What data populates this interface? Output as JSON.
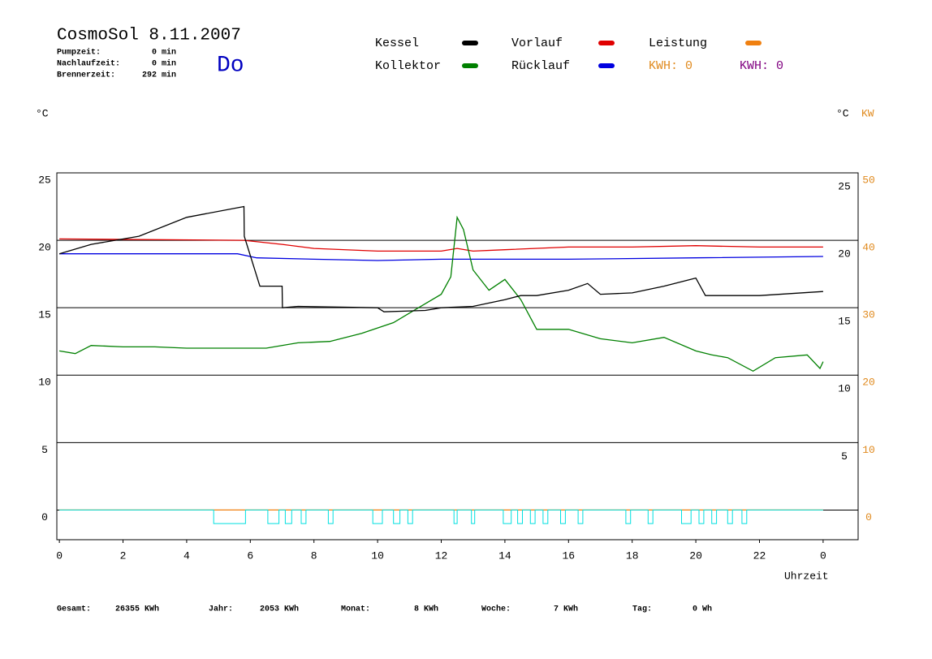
{
  "chart_data": {
    "type": "line",
    "title": "CosmoSol 8.11.2007",
    "day": "Do",
    "stats": [
      {
        "label": "Pumpzeit:",
        "value": "0 min"
      },
      {
        "label": "Nachlaufzeit:",
        "value": "0 min"
      },
      {
        "label": "Brennerzeit:",
        "value": "292 min"
      }
    ],
    "kwh": [
      {
        "label": "KWH:",
        "value": 0,
        "color": "#e08a1e"
      },
      {
        "label": "KWH:",
        "value": 0,
        "color": "#800080"
      }
    ],
    "ylabel": "°C",
    "y2label_left": "°C",
    "y2label": "KW",
    "xlabel": "Uhrzeit",
    "xlim": [
      -0.08,
      25.1
    ],
    "xticks": [
      0,
      2,
      4,
      6,
      8,
      10,
      12,
      14,
      16,
      18,
      20,
      22,
      {
        "value": 24,
        "label": "0"
      }
    ],
    "ylim": [
      -2.2,
      25
    ],
    "yticks": [
      0,
      5,
      10,
      15,
      20,
      25
    ],
    "y2lim": [
      -4.4,
      50
    ],
    "y2ticks": [
      0,
      10,
      20,
      30,
      40,
      50
    ],
    "grid": true,
    "series": [
      {
        "name": "Kessel",
        "color": "#000000",
        "x": [
          0,
          1,
          2.5,
          4,
          5.8,
          5.81,
          6.3,
          7.0,
          7.01,
          7.5,
          10,
          10.2,
          11.5,
          12,
          13,
          14,
          14.5,
          15,
          16,
          16.6,
          17,
          18,
          19,
          20,
          20.3,
          22,
          24
        ],
        "values": [
          19.0,
          19.7,
          20.3,
          21.7,
          22.5,
          20.3,
          16.6,
          16.6,
          15.0,
          15.1,
          15.0,
          14.7,
          14.8,
          15.0,
          15.1,
          15.6,
          15.9,
          15.9,
          16.3,
          16.8,
          16.0,
          16.1,
          16.6,
          17.2,
          15.9,
          15.9,
          16.2
        ]
      },
      {
        "name": "Kollektor",
        "color": "#008000",
        "x": [
          0,
          0.5,
          1,
          2,
          3,
          4,
          5,
          5.8,
          6.5,
          7.5,
          8.5,
          9.5,
          10.5,
          11,
          11.5,
          12,
          12.3,
          12.5,
          12.7,
          13,
          13.5,
          14,
          14.5,
          15,
          16,
          17,
          18,
          19,
          20,
          20.5,
          21,
          21.8,
          22.5,
          23.5,
          23.9,
          24
        ],
        "values": [
          11.8,
          11.6,
          12.2,
          12.1,
          12.1,
          12.0,
          12.0,
          12.0,
          12.0,
          12.4,
          12.5,
          13.1,
          13.9,
          14.6,
          15.3,
          16.0,
          17.3,
          21.7,
          20.8,
          17.8,
          16.3,
          17.1,
          15.6,
          13.4,
          13.4,
          12.7,
          12.4,
          12.8,
          11.8,
          11.5,
          11.3,
          10.3,
          11.3,
          11.5,
          10.5,
          11.0
        ]
      },
      {
        "name": "Vorlauf",
        "color": "#e00000",
        "x": [
          0,
          5.8,
          7,
          8,
          10,
          12,
          12.5,
          13,
          14,
          16,
          18,
          20,
          22,
          24
        ],
        "values": [
          20.1,
          20.0,
          19.7,
          19.4,
          19.2,
          19.2,
          19.4,
          19.2,
          19.3,
          19.5,
          19.5,
          19.6,
          19.5,
          19.5
        ]
      },
      {
        "name": "Rücklauf",
        "color": "#0000e0",
        "x": [
          0,
          5.6,
          6.2,
          8,
          10,
          12,
          14,
          16,
          20,
          24
        ],
        "values": [
          19.0,
          19.0,
          18.7,
          18.6,
          18.5,
          18.6,
          18.6,
          18.6,
          18.7,
          18.8
        ]
      },
      {
        "name": "Leistung",
        "color": "#f08010",
        "axis": "y2",
        "x": [
          0,
          24
        ],
        "values": [
          0,
          0
        ]
      },
      {
        "color": "#00e0e0",
        "x": [
          0,
          4.85,
          4.85,
          5.85,
          5.85,
          6.55,
          6.55,
          6.9,
          6.9,
          7.1,
          7.1,
          7.3,
          7.3,
          7.6,
          7.6,
          7.75,
          7.75,
          8.45,
          8.45,
          8.6,
          8.6,
          9.85,
          9.85,
          10.15,
          10.15,
          10.5,
          10.5,
          10.7,
          10.7,
          10.95,
          10.95,
          11.1,
          11.1,
          12.4,
          12.4,
          12.5,
          12.5,
          12.95,
          12.95,
          13.05,
          13.05,
          13.95,
          13.95,
          14.2,
          14.2,
          14.4,
          14.4,
          14.55,
          14.55,
          14.8,
          14.8,
          14.95,
          14.95,
          15.2,
          15.2,
          15.35,
          15.35,
          15.75,
          15.75,
          15.9,
          15.9,
          16.3,
          16.3,
          16.45,
          16.45,
          17.8,
          17.8,
          17.95,
          17.95,
          18.5,
          18.5,
          18.65,
          18.65,
          19.55,
          19.55,
          19.85,
          19.85,
          20.1,
          20.1,
          20.25,
          20.25,
          20.5,
          20.5,
          20.65,
          20.65,
          21.0,
          21.0,
          21.15,
          21.15,
          21.45,
          21.45,
          21.6,
          21.6,
          24
        ],
        "values": [
          0,
          0,
          -1,
          -1,
          0,
          0,
          -1,
          -1,
          0,
          0,
          -1,
          -1,
          0,
          0,
          -1,
          -1,
          0,
          0,
          -1,
          -1,
          0,
          0,
          -1,
          -1,
          0,
          0,
          -1,
          -1,
          0,
          0,
          -1,
          -1,
          0,
          0,
          -1,
          -1,
          0,
          0,
          -1,
          -1,
          0,
          0,
          -1,
          -1,
          0,
          0,
          -1,
          -1,
          0,
          0,
          -1,
          -1,
          0,
          0,
          -1,
          -1,
          0,
          0,
          -1,
          -1,
          0,
          0,
          -1,
          -1,
          0,
          0,
          -1,
          -1,
          0,
          0,
          -1,
          -1,
          0,
          0,
          -1,
          -1,
          0,
          0,
          -1,
          -1,
          0,
          0,
          -1,
          -1,
          0,
          0,
          -1,
          -1,
          0,
          0,
          -1,
          -1,
          0,
          0
        ]
      }
    ],
    "totals": [
      {
        "label": "Gesamt:",
        "value": "26355 KWh"
      },
      {
        "label": "Jahr:",
        "value": "2053 KWh"
      },
      {
        "label": "Monat:",
        "value": "8 KWh"
      },
      {
        "label": "Woche:",
        "value": "7 KWh"
      },
      {
        "label": "Tag:",
        "value": "0 Wh"
      }
    ]
  }
}
